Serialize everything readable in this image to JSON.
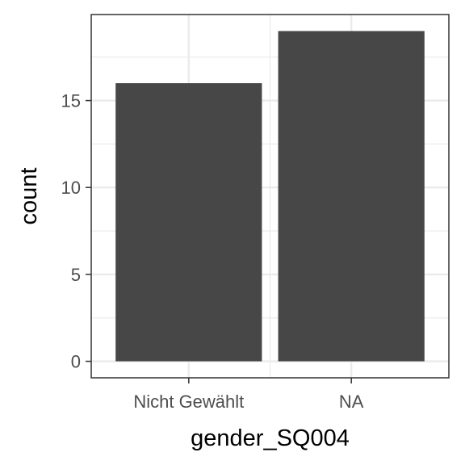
{
  "chart_data": {
    "type": "bar",
    "categories": [
      "Nicht Gewählt",
      "NA"
    ],
    "values": [
      16,
      19
    ],
    "xlabel": "gender_SQ004",
    "ylabel": "count",
    "ylim": [
      -0.95,
      19.95
    ],
    "yticks": [
      0,
      5,
      10,
      15
    ],
    "grid": true,
    "bar_color": "#474747",
    "grid_color": "#ebebeb",
    "panel_border_color": "#333333"
  }
}
